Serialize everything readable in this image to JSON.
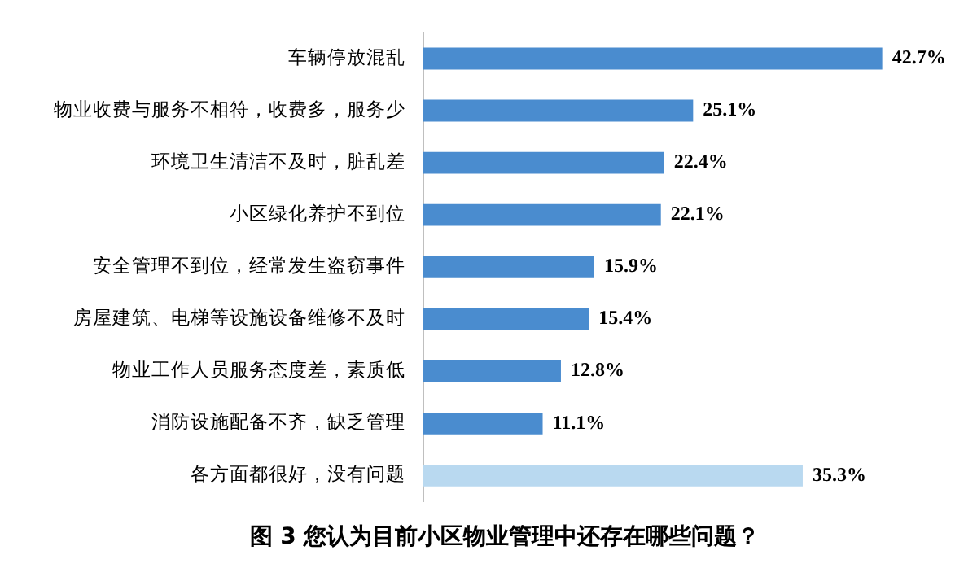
{
  "chart_data": {
    "type": "bar",
    "orientation": "horizontal",
    "title": "图 3 您认为目前小区物业管理中还存在哪些问题？",
    "categories": [
      "车辆停放混乱",
      "物业收费与服务不相符，收费多，服务少",
      "环境卫生清洁不及时，脏乱差",
      "小区绿化养护不到位",
      "安全管理不到位，经常发生盗窃事件",
      "房屋建筑、电梯等设施设备维修不及时",
      "物业工作人员服务态度差，素质低",
      "消防设施配备不齐，缺乏管理",
      "各方面都很好，没有问题"
    ],
    "values": [
      42.7,
      25.1,
      22.4,
      22.1,
      15.9,
      15.4,
      12.8,
      11.1,
      35.3
    ],
    "value_labels": [
      "42.7%",
      "25.1%",
      "22.4%",
      "22.1%",
      "15.9%",
      "15.4%",
      "12.8%",
      "11.1%",
      "35.3%"
    ],
    "colors": [
      "#4a8ccf",
      "#4a8ccf",
      "#4a8ccf",
      "#4a8ccf",
      "#4a8ccf",
      "#4a8ccf",
      "#4a8ccf",
      "#4a8ccf",
      "#b9d9f0"
    ]
  }
}
